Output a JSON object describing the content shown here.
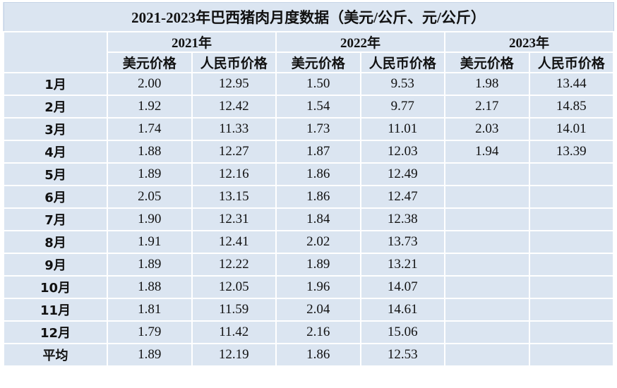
{
  "table": {
    "title": "2021-2023年巴西猪肉月度数据（美元/公斤、元/公斤）",
    "years": [
      "2021年",
      "2022年",
      "2023年"
    ],
    "columns": [
      "美元价格",
      "人民币价格",
      "美元价格",
      "人民币价格",
      "美元价格",
      "人民币价格"
    ],
    "rows": [
      [
        "1月",
        "2.00",
        "12.95",
        "1.50",
        "9.53",
        "1.98",
        "13.44"
      ],
      [
        "2月",
        "1.92",
        "12.42",
        "1.54",
        "9.77",
        "2.17",
        "14.85"
      ],
      [
        "3月",
        "1.74",
        "11.33",
        "1.73",
        "11.01",
        "2.03",
        "14.01"
      ],
      [
        "4月",
        "1.88",
        "12.27",
        "1.87",
        "12.03",
        "1.94",
        "13.39"
      ],
      [
        "5月",
        "1.89",
        "12.16",
        "1.86",
        "12.49"
      ],
      [
        "6月",
        "2.05",
        "13.15",
        "1.86",
        "12.47"
      ],
      [
        "7月",
        "1.90",
        "12.31",
        "1.84",
        "12.38"
      ],
      [
        "8月",
        "1.91",
        "12.41",
        "2.02",
        "13.73"
      ],
      [
        "9月",
        "1.89",
        "12.22",
        "1.89",
        "13.21"
      ],
      [
        "10月",
        "1.88",
        "12.05",
        "1.96",
        "14.07"
      ],
      [
        "11月",
        "1.81",
        "11.59",
        "2.04",
        "14.61"
      ],
      [
        "12月",
        "1.79",
        "11.42",
        "2.16",
        "15.06"
      ],
      [
        "平均",
        "1.89",
        "12.19",
        "1.86",
        "12.53"
      ]
    ]
  }
}
